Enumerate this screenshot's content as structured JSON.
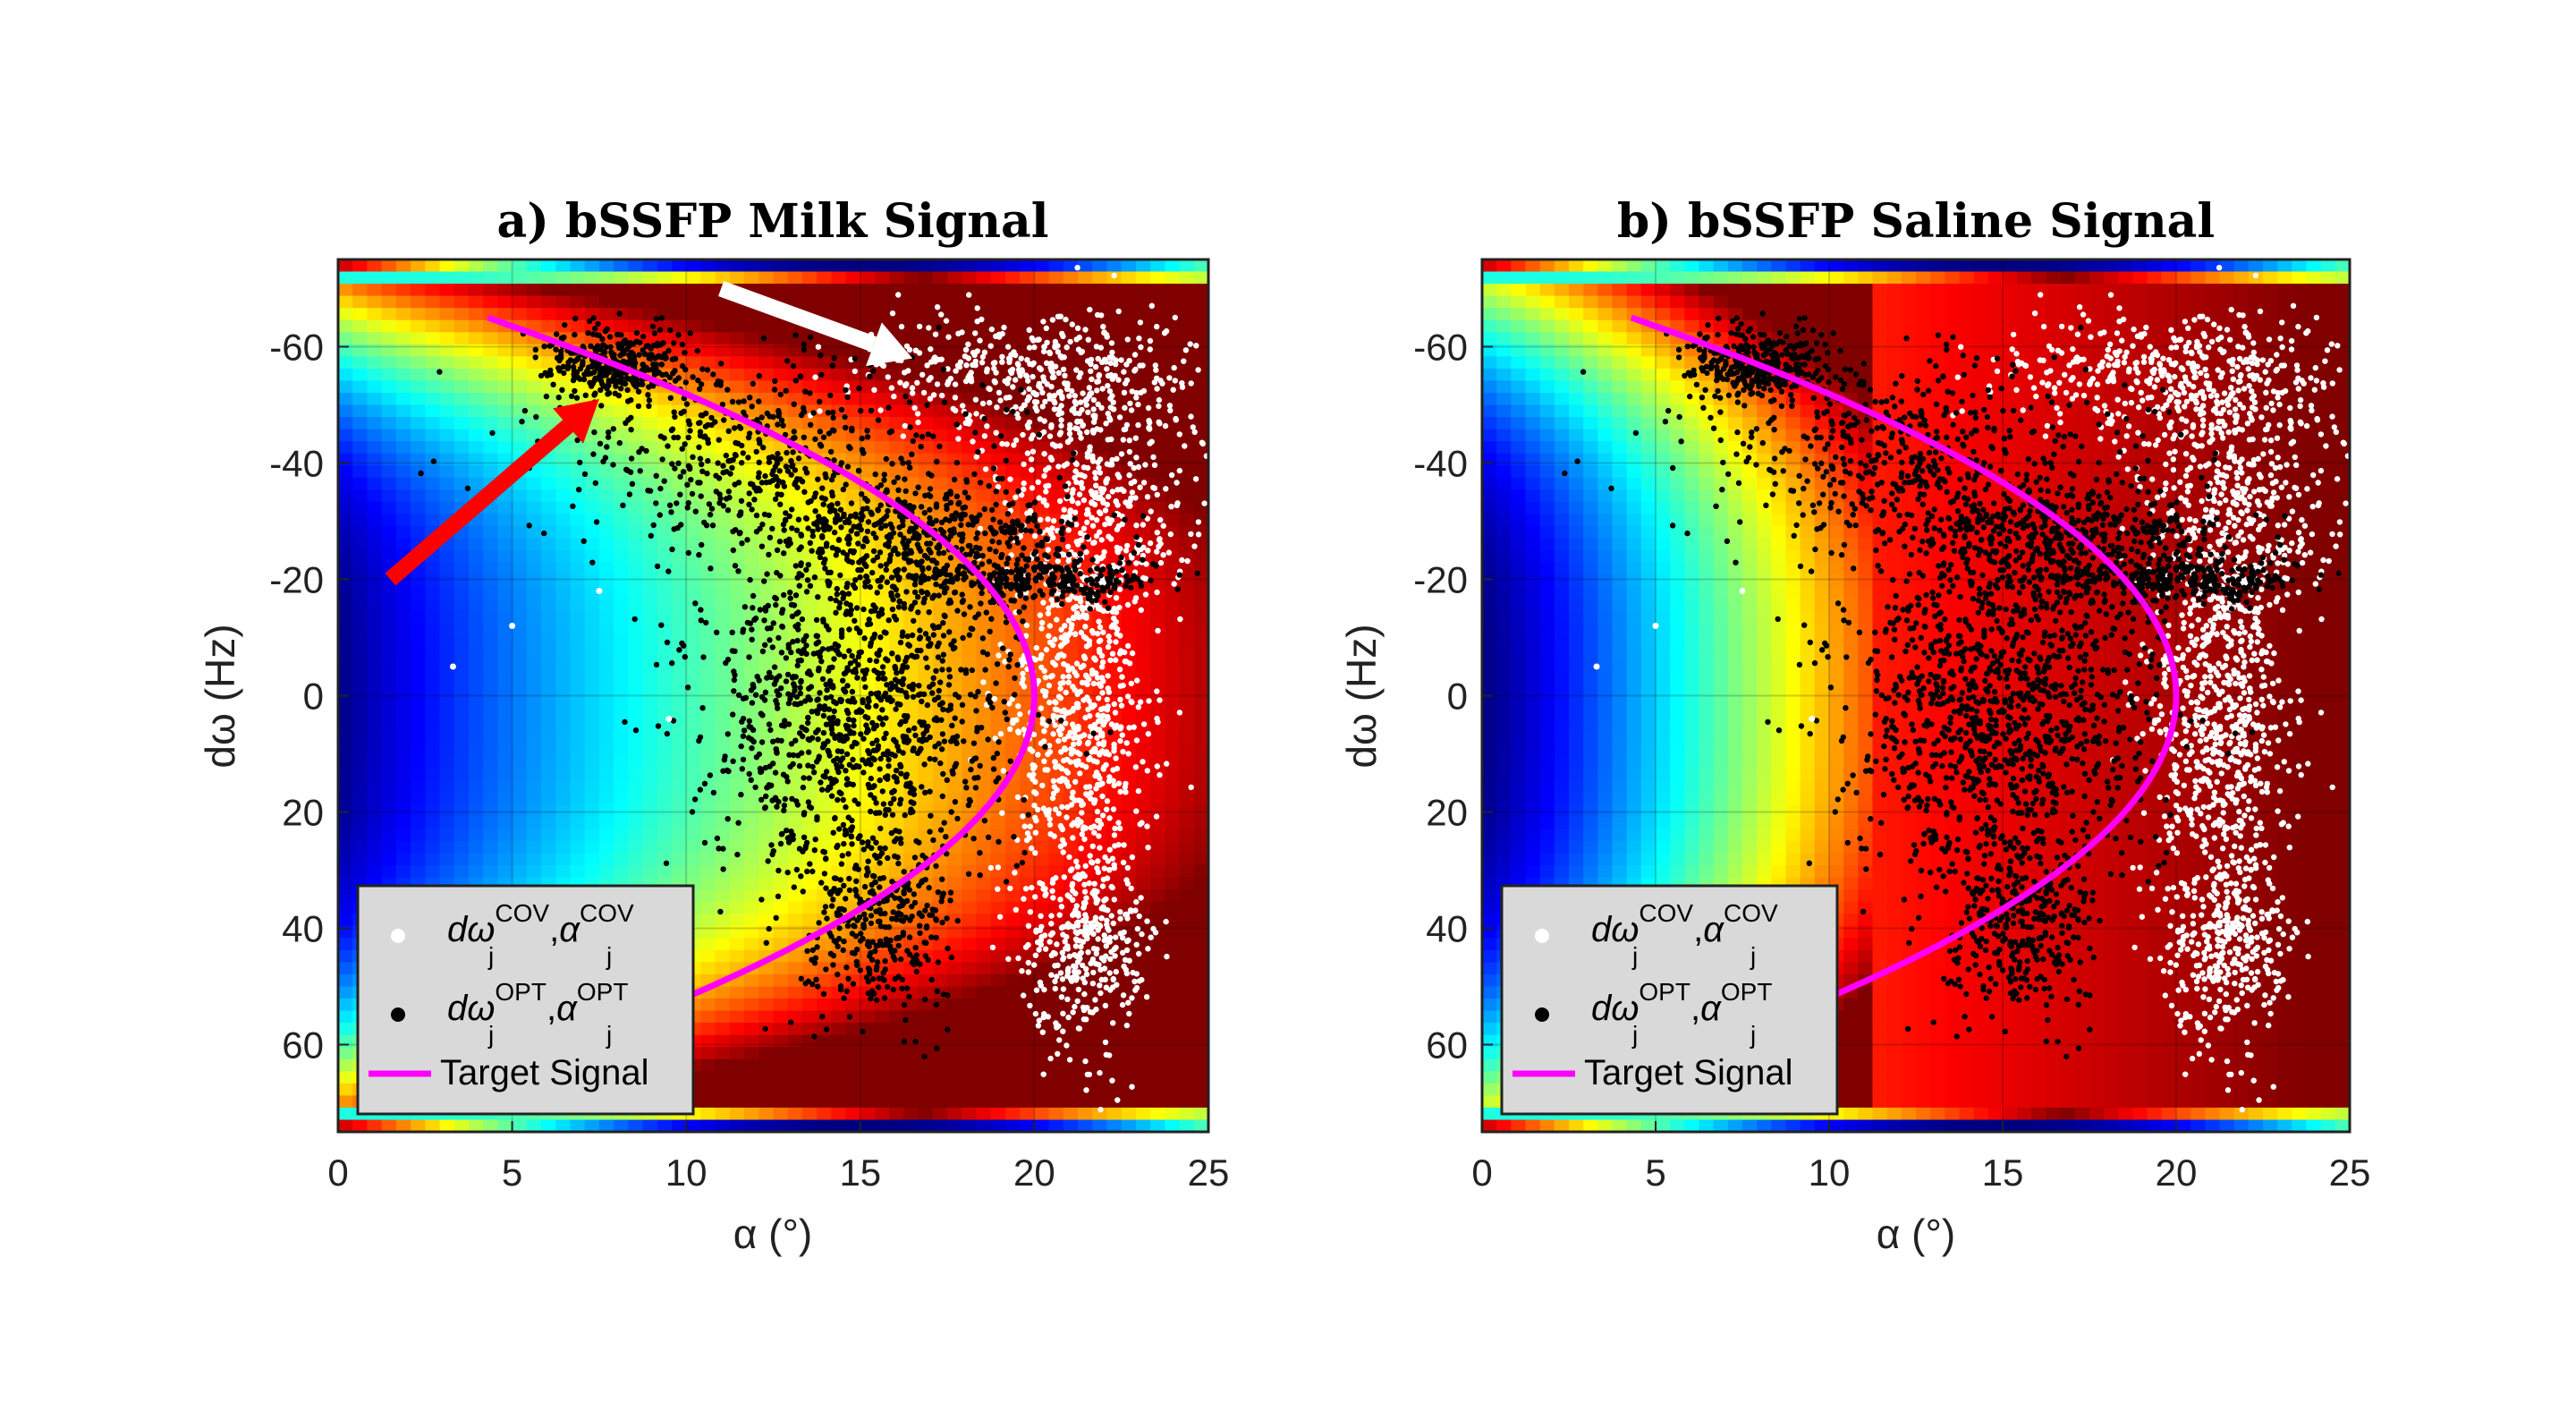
{
  "chart_data": [
    {
      "id": "a",
      "type": "scatter",
      "title": "a) bSSFP Milk Signal",
      "xlabel": "α (°)",
      "ylabel": "dω (Hz)",
      "xlim": [
        0,
        25
      ],
      "ylim": [
        -75,
        75
      ],
      "y_reversed": true,
      "xticks": [
        0,
        5,
        10,
        15,
        20,
        25
      ],
      "yticks": [
        -60,
        -40,
        -20,
        0,
        20,
        40,
        60
      ],
      "background": "heatmap",
      "target_signal": {
        "name": "Target Signal",
        "color": "#ff00ff",
        "alpha_max": 20,
        "dw_min": -65,
        "dw_max": 53
      },
      "series": [
        {
          "name": "dω_j^COV, α_j^COV",
          "color": "#ffffff",
          "clusters": [
            {
              "cx": 20,
              "cy": -55,
              "sx": 2.5,
              "sy": 6,
              "n": 420
            },
            {
              "cx": 22,
              "cy": -35,
              "sx": 1.5,
              "sy": 10,
              "n": 300
            },
            {
              "cx": 21.3,
              "cy": 5,
              "sx": 1,
              "sy": 25,
              "n": 900
            },
            {
              "cx": 21.5,
              "cy": 45,
              "sx": 0.9,
              "sy": 7,
              "n": 220
            }
          ]
        },
        {
          "name": "dω_j^OPT, α_j^OPT",
          "color": "#000000",
          "clusters": [
            {
              "cx": 8,
              "cy": -57,
              "sx": 1,
              "sy": 3,
              "n": 350
            },
            {
              "cx": 12,
              "cy": -42,
              "sx": 3,
              "sy": 8,
              "n": 450
            },
            {
              "cx": 17,
              "cy": -28,
              "sx": 2.5,
              "sy": 4,
              "n": 380
            },
            {
              "cx": 20,
              "cy": -20,
              "sx": 1.8,
              "sy": 2,
              "n": 280
            },
            {
              "cx": 15,
              "cy": 0,
              "sx": 2.2,
              "sy": 18,
              "n": 1300
            },
            {
              "cx": 15.5,
              "cy": 40,
              "sx": 1,
              "sy": 8,
              "n": 300
            }
          ]
        }
      ],
      "outliers": [
        {
          "x": 7.5,
          "y": -18
        },
        {
          "x": 5,
          "y": -12
        },
        {
          "x": 3.3,
          "y": -5
        },
        {
          "x": 9.5,
          "y": 4
        }
      ],
      "annotations": [
        {
          "type": "arrow",
          "color": "#ff0000",
          "from": [
            1.5,
            -20
          ],
          "to": [
            7.5,
            -51
          ]
        },
        {
          "type": "arrow",
          "color": "#ffffff",
          "from": [
            11,
            -70
          ],
          "to": [
            16.5,
            -58
          ]
        }
      ],
      "legend": {
        "placement": "bottom-left",
        "entries": [
          {
            "marker": "dot-white",
            "base": "dω",
            "sub": "j",
            "sup": "COV",
            "base2": "α",
            "sub2": "j",
            "sup2": "COV"
          },
          {
            "marker": "dot-black",
            "base": "dω",
            "sub": "j",
            "sup": "OPT",
            "base2": "α",
            "sub2": "j",
            "sup2": "OPT"
          },
          {
            "marker": "line-magenta",
            "label": "Target Signal"
          }
        ]
      }
    },
    {
      "id": "b",
      "type": "scatter",
      "title": "b) bSSFP Saline Signal",
      "xlabel": "α (°)",
      "ylabel": "dω (Hz)",
      "xlim": [
        0,
        25
      ],
      "ylim": [
        -75,
        75
      ],
      "y_reversed": true,
      "xticks": [
        0,
        5,
        10,
        15,
        20,
        25
      ],
      "yticks": [
        -60,
        -40,
        -20,
        0,
        20,
        40,
        60
      ],
      "background": "heatmap",
      "target_signal": {
        "name": "Target Signal",
        "color": "#ff00ff",
        "alpha_max": 20,
        "dw_min": -65,
        "dw_max": 53
      },
      "series": [
        {
          "name": "dω_j^COV, α_j^COV",
          "color": "#ffffff",
          "clusters": [
            {
              "cx": 20,
              "cy": -55,
              "sx": 2.5,
              "sy": 6,
              "n": 420
            },
            {
              "cx": 22,
              "cy": -35,
              "sx": 1.5,
              "sy": 10,
              "n": 300
            },
            {
              "cx": 21.3,
              "cy": 5,
              "sx": 1,
              "sy": 25,
              "n": 900
            },
            {
              "cx": 21.5,
              "cy": 45,
              "sx": 0.9,
              "sy": 7,
              "n": 220
            }
          ]
        },
        {
          "name": "dω_j^OPT, α_j^OPT",
          "color": "#000000",
          "clusters": [
            {
              "cx": 8,
              "cy": -57,
              "sx": 1,
              "sy": 3,
              "n": 350
            },
            {
              "cx": 12,
              "cy": -42,
              "sx": 3,
              "sy": 8,
              "n": 450
            },
            {
              "cx": 17,
              "cy": -28,
              "sx": 2.5,
              "sy": 4,
              "n": 380
            },
            {
              "cx": 20,
              "cy": -20,
              "sx": 1.8,
              "sy": 2,
              "n": 280
            },
            {
              "cx": 15,
              "cy": 0,
              "sx": 2.2,
              "sy": 18,
              "n": 1300
            },
            {
              "cx": 15.5,
              "cy": 40,
              "sx": 1,
              "sy": 8,
              "n": 300
            }
          ]
        }
      ],
      "outliers": [
        {
          "x": 7.5,
          "y": -18
        },
        {
          "x": 5,
          "y": -12
        },
        {
          "x": 3.3,
          "y": -5
        },
        {
          "x": 9.5,
          "y": 4
        }
      ],
      "annotations": [],
      "legend": {
        "placement": "bottom-left",
        "entries": [
          {
            "marker": "dot-white",
            "base": "dω",
            "sub": "j",
            "sup": "COV",
            "base2": "α",
            "sub2": "j",
            "sup2": "COV"
          },
          {
            "marker": "dot-black",
            "base": "dω",
            "sub": "j",
            "sup": "OPT",
            "base2": "α",
            "sub2": "j",
            "sup2": "OPT"
          },
          {
            "marker": "line-magenta",
            "label": "Target Signal"
          }
        ]
      }
    }
  ]
}
